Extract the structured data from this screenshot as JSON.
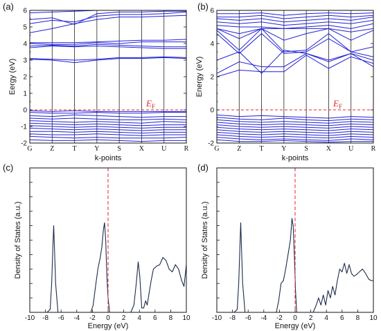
{
  "chart_data": [
    {
      "type": "line",
      "panel": "(a)",
      "xlabel": "k-points",
      "ylabel": "Eergy (eV)",
      "k_labels": [
        "G",
        "Z",
        "T",
        "Y",
        "S",
        "X",
        "U",
        "R"
      ],
      "ylim": [
        -2,
        6
      ],
      "yticks": [
        -2,
        -1,
        0,
        1,
        2,
        3,
        4,
        5,
        6
      ],
      "fermi_level": 0,
      "fermi_label": "E",
      "fermi_sub": "F",
      "line_color": "#1f1fd6",
      "fermi_color": "#e3262b",
      "conduction_bands": [
        [
          3.05,
          3.0,
          2.85,
          3.0,
          3.1,
          3.1,
          3.15,
          3.1
        ],
        [
          3.1,
          3.05,
          3.0,
          3.05,
          3.15,
          3.15,
          3.2,
          3.15
        ],
        [
          3.75,
          3.85,
          3.8,
          3.85,
          3.8,
          3.75,
          3.7,
          3.7
        ],
        [
          3.85,
          3.9,
          3.85,
          3.95,
          3.9,
          3.85,
          3.8,
          3.8
        ],
        [
          4.0,
          3.95,
          3.95,
          4.05,
          4.0,
          4.1,
          4.1,
          4.1
        ],
        [
          4.05,
          4.05,
          4.05,
          4.1,
          4.15,
          4.2,
          4.2,
          4.25
        ],
        [
          4.65,
          4.9,
          5.2,
          5.45,
          5.6,
          5.6,
          5.65,
          5.7
        ],
        [
          5.2,
          5.4,
          5.3,
          5.65,
          5.75,
          5.75,
          5.8,
          5.9
        ],
        [
          5.45,
          5.55,
          5.15,
          5.8,
          5.9,
          5.9,
          5.95,
          5.95
        ],
        [
          5.85,
          5.9,
          5.95,
          6.0,
          6.0,
          6.0,
          6.0,
          6.0
        ]
      ],
      "valence_bands": [
        [
          -0.05,
          -0.1,
          -0.05,
          -0.1,
          -0.1,
          -0.1,
          -0.1,
          -0.1
        ],
        [
          -0.15,
          -0.2,
          -0.2,
          -0.15,
          -0.2,
          -0.2,
          -0.15,
          -0.15
        ],
        [
          -0.35,
          -0.4,
          -0.3,
          -0.35,
          -0.4,
          -0.45,
          -0.4,
          -0.4
        ],
        [
          -0.5,
          -0.55,
          -0.5,
          -0.55,
          -0.6,
          -0.6,
          -0.55,
          -0.6
        ],
        [
          -0.65,
          -0.7,
          -0.75,
          -0.7,
          -0.75,
          -0.8,
          -0.7,
          -0.75
        ],
        [
          -0.8,
          -0.85,
          -0.9,
          -0.85,
          -0.9,
          -0.95,
          -0.9,
          -0.9
        ],
        [
          -0.95,
          -1.0,
          -1.05,
          -1.0,
          -1.05,
          -1.1,
          -1.05,
          -1.05
        ],
        [
          -1.1,
          -1.15,
          -1.2,
          -1.15,
          -1.2,
          -1.25,
          -1.2,
          -1.2
        ],
        [
          -1.3,
          -1.3,
          -1.35,
          -1.3,
          -1.35,
          -1.4,
          -1.35,
          -1.35
        ],
        [
          -1.45,
          -1.5,
          -1.5,
          -1.45,
          -1.5,
          -1.55,
          -1.5,
          -1.5
        ],
        [
          -1.6,
          -1.65,
          -1.7,
          -1.65,
          -1.7,
          -1.7,
          -1.7,
          -1.65
        ],
        [
          -1.8,
          -1.85,
          -1.85,
          -1.8,
          -1.85,
          -1.9,
          -1.85,
          -1.85
        ]
      ]
    },
    {
      "type": "line",
      "panel": "(b)",
      "xlabel": "k-points",
      "ylabel": "Energy (eV)",
      "k_labels": [
        "G",
        "Z",
        "T",
        "Y",
        "S",
        "X",
        "U",
        "R"
      ],
      "ylim": [
        -2,
        6
      ],
      "yticks": [
        -2,
        0,
        2,
        4,
        6
      ],
      "fermi_level": 0,
      "fermi_label": "E",
      "fermi_sub": "F",
      "line_color": "#1f1fd6",
      "fermi_color": "#e3262b",
      "conduction_bands": [
        [
          2.0,
          2.4,
          2.3,
          2.3,
          3.3,
          2.5,
          3.2,
          2.8
        ],
        [
          2.2,
          2.9,
          2.6,
          2.6,
          3.4,
          2.9,
          3.4,
          2.6
        ],
        [
          3.0,
          3.5,
          2.2,
          3.6,
          3.4,
          3.0,
          3.4,
          3.0
        ],
        [
          4.6,
          3.4,
          4.6,
          3.4,
          3.5,
          4.3,
          3.5,
          3.8
        ],
        [
          4.8,
          3.6,
          4.9,
          3.5,
          3.6,
          4.6,
          3.5,
          3.2
        ],
        [
          4.9,
          4.3,
          4.9,
          4.2,
          4.6,
          4.9,
          4.2,
          4.8
        ],
        [
          4.9,
          4.6,
          4.9,
          4.9,
          4.9,
          4.9,
          4.7,
          4.9
        ],
        [
          5.1,
          5.0,
          5.0,
          4.9,
          5.0,
          5.1,
          4.9,
          5.2
        ],
        [
          5.3,
          5.2,
          5.3,
          5.1,
          5.2,
          5.3,
          5.2,
          5.4
        ],
        [
          5.5,
          5.4,
          5.5,
          5.3,
          5.4,
          5.5,
          5.4,
          5.6
        ],
        [
          5.6,
          5.6,
          5.7,
          5.5,
          5.6,
          5.7,
          5.6,
          5.7
        ],
        [
          5.8,
          5.8,
          5.85,
          5.7,
          5.8,
          5.85,
          5.8,
          5.85
        ]
      ],
      "valence_bands": [
        [
          -0.3,
          -0.4,
          -0.35,
          -0.4,
          -0.45,
          -0.5,
          -0.4,
          -0.45
        ],
        [
          -0.45,
          -0.55,
          -0.6,
          -0.5,
          -0.6,
          -0.65,
          -0.55,
          -0.6
        ],
        [
          -0.6,
          -0.7,
          -0.75,
          -0.7,
          -0.75,
          -0.8,
          -0.7,
          -0.75
        ],
        [
          -0.75,
          -0.85,
          -0.9,
          -0.85,
          -0.9,
          -0.95,
          -0.85,
          -0.9
        ],
        [
          -0.9,
          -1.0,
          -1.05,
          -1.0,
          -1.05,
          -1.1,
          -1.0,
          -1.05
        ],
        [
          -1.05,
          -1.15,
          -1.2,
          -1.15,
          -1.2,
          -1.25,
          -1.15,
          -1.2
        ],
        [
          -1.2,
          -1.3,
          -1.35,
          -1.3,
          -1.35,
          -1.4,
          -1.3,
          -1.35
        ],
        [
          -1.35,
          -1.45,
          -1.5,
          -1.45,
          -1.5,
          -1.55,
          -1.45,
          -1.5
        ],
        [
          -1.5,
          -1.6,
          -1.65,
          -1.6,
          -1.65,
          -1.7,
          -1.6,
          -1.65
        ],
        [
          -1.65,
          -1.75,
          -1.8,
          -1.75,
          -1.8,
          -1.85,
          -1.75,
          -1.8
        ],
        [
          -1.8,
          -1.9,
          -1.9,
          -1.85,
          -1.9,
          -1.95,
          -1.9,
          -1.9
        ]
      ]
    },
    {
      "type": "line",
      "panel": "(c)",
      "xlabel": "Energy (eV)",
      "ylabel": "Density of States (a.u.)",
      "xlim": [
        -10,
        10
      ],
      "xticks": [
        -10,
        -8,
        -6,
        -4,
        -2,
        0,
        2,
        4,
        6,
        8,
        10
      ],
      "ylim": [
        0,
        1
      ],
      "fermi_level": 0,
      "line_color": "#1b2a4a",
      "fermi_color": "#e3262b",
      "series": [
        {
          "x": [
            -7.8,
            -7.4,
            -7.2,
            -7.05,
            -6.95,
            -6.85,
            -6.7,
            -6.4,
            -2.2,
            -1.9,
            -1.6,
            -1.3,
            -1.0,
            -0.8,
            -0.6,
            -0.45,
            -0.3,
            -0.15,
            0.0,
            0.2,
            2.9,
            3.3,
            3.6,
            3.85,
            4.05,
            4.3,
            4.55,
            4.8,
            5.0,
            5.2,
            5.5,
            5.8,
            6.2,
            6.6,
            7.0,
            7.4,
            7.8,
            8.2,
            8.6,
            9.0,
            9.4,
            9.7,
            10.0
          ],
          "y": [
            0.0,
            0.02,
            0.2,
            0.45,
            0.6,
            0.45,
            0.2,
            0.0,
            0.0,
            0.05,
            0.18,
            0.3,
            0.38,
            0.45,
            0.57,
            0.62,
            0.5,
            0.25,
            0.1,
            0.0,
            0.0,
            0.05,
            0.2,
            0.35,
            0.25,
            0.03,
            0.03,
            0.08,
            0.05,
            0.12,
            0.22,
            0.3,
            0.32,
            0.33,
            0.38,
            0.36,
            0.3,
            0.28,
            0.33,
            0.3,
            0.22,
            0.18,
            0.33
          ]
        }
      ]
    },
    {
      "type": "line",
      "panel": "(d)",
      "xlabel": "Energy (eV)",
      "ylabel": "Density of States (a.u.)",
      "xlim": [
        -10,
        10
      ],
      "xticks": [
        -10,
        -8,
        -6,
        -4,
        -2,
        0,
        2,
        4,
        6,
        8,
        10
      ],
      "ylim": [
        0,
        1
      ],
      "fermi_level": 0,
      "line_color": "#1b2a4a",
      "fermi_color": "#e3262b",
      "series": [
        {
          "x": [
            -7.8,
            -7.4,
            -7.2,
            -7.05,
            -6.95,
            -6.85,
            -6.7,
            -6.4,
            -2.4,
            -2.1,
            -1.8,
            -1.5,
            -1.2,
            -0.9,
            -0.6,
            -0.4,
            -0.25,
            -0.1,
            0.05,
            0.2,
            2.3,
            2.7,
            3.0,
            3.3,
            3.6,
            3.9,
            4.2,
            4.5,
            4.8,
            5.1,
            5.4,
            5.7,
            6.0,
            6.3,
            6.6,
            6.9,
            7.2,
            7.5,
            7.8,
            8.2,
            8.6,
            9.0,
            9.4,
            9.7,
            10.0
          ],
          "y": [
            0.0,
            0.02,
            0.2,
            0.45,
            0.62,
            0.45,
            0.2,
            0.0,
            0.0,
            0.08,
            0.2,
            0.22,
            0.3,
            0.4,
            0.5,
            0.65,
            0.6,
            0.4,
            0.15,
            0.0,
            0.0,
            0.05,
            0.1,
            0.05,
            0.12,
            0.05,
            0.15,
            0.1,
            0.18,
            0.12,
            0.22,
            0.3,
            0.28,
            0.34,
            0.27,
            0.33,
            0.27,
            0.25,
            0.26,
            0.28,
            0.3,
            0.27,
            0.23,
            0.22,
            0.22
          ]
        }
      ]
    }
  ]
}
